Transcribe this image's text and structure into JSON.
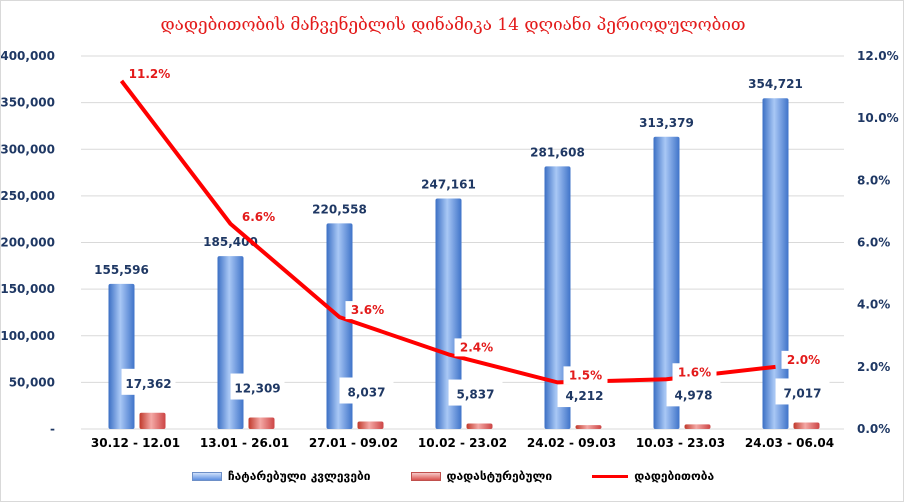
{
  "chart_data": {
    "type": "bar+line",
    "title": "დადებითობის მაჩვენებლის დინამიკა 14 დღიანი პერიოდულობით",
    "categories": [
      "30.12 - 12.01",
      "13.01 - 26.01",
      "27.01 - 09.02",
      "10.02 - 23.02",
      "24.02 - 09.03",
      "10.03 - 23.03",
      "24.03 - 06.04"
    ],
    "series": [
      {
        "name": "ჩატარებული კვლევები",
        "type": "bar",
        "axis": "left",
        "color": "#4f81d9",
        "values": [
          155596,
          185400,
          220558,
          247161,
          281608,
          313379,
          354721
        ],
        "labels": [
          "155,596",
          "185,400",
          "220,558",
          "247,161",
          "281,608",
          "313,379",
          "354,721"
        ]
      },
      {
        "name": "დადასტურებული",
        "type": "bar",
        "axis": "left",
        "color": "#d9534f",
        "values": [
          17362,
          12309,
          8037,
          5837,
          4212,
          4978,
          7017
        ],
        "labels": [
          "17,362",
          "12,309",
          "8,037",
          "5,837",
          "4,212",
          "4,978",
          "7,017"
        ]
      },
      {
        "name": "დადებითობა",
        "type": "line",
        "axis": "right",
        "color": "#ff0000",
        "values": [
          11.2,
          6.6,
          3.6,
          2.4,
          1.5,
          1.6,
          2.0
        ],
        "labels": [
          "11.2%",
          "6.6%",
          "3.6%",
          "2.4%",
          "1.5%",
          "1.6%",
          "2.0%"
        ]
      }
    ],
    "left_axis": {
      "ylim": [
        0,
        400000
      ],
      "ticks": [
        "-",
        "50,000",
        "100,000",
        "150,000",
        "200,000",
        "250,000",
        "300,000",
        "350,000",
        "400,000"
      ]
    },
    "right_axis": {
      "ylim": [
        0,
        12
      ],
      "ticks": [
        "0.0%",
        "2.0%",
        "4.0%",
        "6.0%",
        "8.0%",
        "10.0%",
        "12.0%"
      ]
    },
    "grid": true,
    "legend": "bottom"
  }
}
